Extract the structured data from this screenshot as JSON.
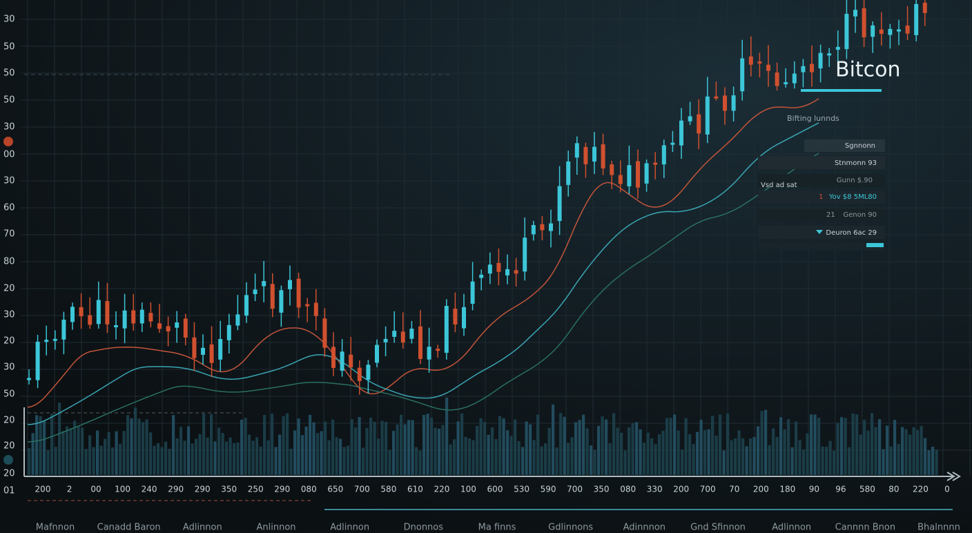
{
  "title": "Bitcon",
  "subtitle": "Bifting lunnds",
  "left_axis_labels": [
    "30",
    "50",
    "50",
    "50",
    "30",
    "00",
    "30",
    "60",
    "70",
    "80",
    "20",
    "30",
    "20",
    "30",
    "50",
    "20",
    "20",
    "20",
    "01"
  ],
  "bottom_axis_labels": [
    "200",
    "2",
    "00",
    "100",
    "240",
    "290",
    "290",
    "350",
    "250",
    "290",
    "080",
    "650",
    "700",
    "580",
    "610",
    "220",
    "100",
    "600",
    "530",
    "590",
    "700",
    "350",
    "080",
    "330",
    "200",
    "700",
    "70",
    "200",
    "180",
    "90",
    "96",
    "580",
    "80",
    "220",
    "0"
  ],
  "bottom_names": [
    "Mafnnon",
    "Canadd Baron",
    "Adlinnon",
    "Anlinnon",
    "Adlinnon",
    "Dnonnos",
    "Ma finns",
    "Gdlinnons",
    "Adinnnon",
    "Gnd Sfinnon",
    "Adlinnon",
    "Cannnn Bnon",
    "Bhalnnnn"
  ],
  "panel": {
    "rows": [
      "Sgnnonn",
      "Stnmonn 93",
      "Gunn $.90",
      "Yov $8 5ML80",
      "Genon 90",
      "Deuron 6ac 29"
    ],
    "side_label": "Vsd ad sat",
    "markers": [
      "1",
      "21"
    ]
  }
}
